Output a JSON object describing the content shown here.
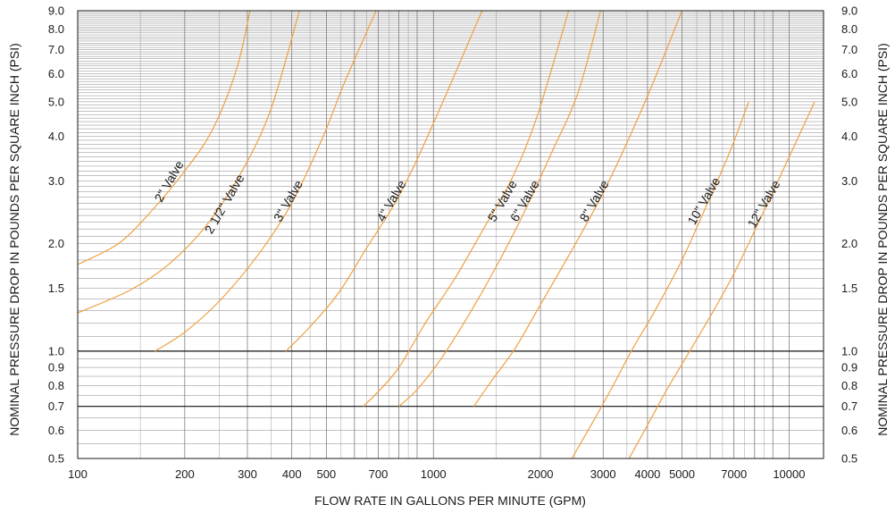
{
  "chart_data": {
    "type": "line",
    "xscale": "log",
    "yscale": "log",
    "xlim": [
      100,
      12500
    ],
    "ylim": [
      0.5,
      9.0
    ],
    "grid": true,
    "xlabel": "FLOW RATE IN GALLONS PER MINUTE (GPM)",
    "ylabel_left": "NOMINAL PRESSURE DROP IN POUNDS PER SQUARE INCH (PSI)",
    "ylabel_right": "NOMINAL PRESSURE DROP IN POUNDS PER SQUARE INCH (PSI)",
    "x_tick_labels": [
      {
        "value": 100,
        "label": "100"
      },
      {
        "value": 200,
        "label": "200"
      },
      {
        "value": 300,
        "label": "300"
      },
      {
        "value": 400,
        "label": "400"
      },
      {
        "value": 500,
        "label": "500"
      },
      {
        "value": 700,
        "label": "700"
      },
      {
        "value": 1000,
        "label": "1000"
      },
      {
        "value": 2000,
        "label": "2000"
      },
      {
        "value": 3000,
        "label": "3000"
      },
      {
        "value": 4000,
        "label": "4000"
      },
      {
        "value": 5000,
        "label": "5000"
      },
      {
        "value": 7000,
        "label": "7000"
      },
      {
        "value": 10000,
        "label": "10000"
      }
    ],
    "y_tick_labels": [
      {
        "value": 0.5,
        "label": "0.5"
      },
      {
        "value": 0.6,
        "label": "0.6"
      },
      {
        "value": 0.7,
        "label": "0.7"
      },
      {
        "value": 0.8,
        "label": "0.8"
      },
      {
        "value": 0.9,
        "label": "0.9"
      },
      {
        "value": 1.0,
        "label": "1.0"
      },
      {
        "value": 1.5,
        "label": "1.5"
      },
      {
        "value": 2.0,
        "label": "2.0"
      },
      {
        "value": 3.0,
        "label": "3.0"
      },
      {
        "value": 4.0,
        "label": "4.0"
      },
      {
        "value": 5.0,
        "label": "5.0"
      },
      {
        "value": 6.0,
        "label": "6.0"
      },
      {
        "value": 7.0,
        "label": "7.0"
      },
      {
        "value": 8.0,
        "label": "8.0"
      },
      {
        "value": 9.0,
        "label": "9.0"
      }
    ],
    "emphasized_y_lines": [
      0.7,
      1.0
    ],
    "series_color": "#f0a040",
    "series": [
      {
        "name": "2\" Valve",
        "label_at": [
          185,
          2.95
        ],
        "points": [
          [
            100,
            1.75
          ],
          [
            130,
            2.0
          ],
          [
            160,
            2.45
          ],
          [
            200,
            3.2
          ],
          [
            240,
            4.2
          ],
          [
            280,
            6.2
          ],
          [
            305,
            9.0
          ]
        ]
      },
      {
        "name": "2 1/2\" Valve",
        "label_at": [
          265,
          2.55
        ],
        "points": [
          [
            100,
            1.28
          ],
          [
            140,
            1.48
          ],
          [
            180,
            1.75
          ],
          [
            230,
            2.25
          ],
          [
            290,
            3.2
          ],
          [
            350,
            4.8
          ],
          [
            420,
            9.0
          ]
        ]
      },
      {
        "name": "3\" Valve",
        "label_at": [
          400,
          2.6
        ],
        "points": [
          [
            165,
            1.0
          ],
          [
            200,
            1.13
          ],
          [
            250,
            1.38
          ],
          [
            320,
            1.85
          ],
          [
            400,
            2.6
          ],
          [
            490,
            4.0
          ],
          [
            560,
            5.6
          ],
          [
            690,
            9.0
          ]
        ]
      },
      {
        "name": "4\" Valve",
        "label_at": [
          780,
          2.6
        ],
        "points": [
          [
            385,
            1.0
          ],
          [
            450,
            1.17
          ],
          [
            540,
            1.45
          ],
          [
            650,
            1.95
          ],
          [
            780,
            2.6
          ],
          [
            900,
            3.45
          ],
          [
            1100,
            5.4
          ],
          [
            1370,
            9.0
          ]
        ]
      },
      {
        "name": "5\" Valve",
        "label_at": [
          1600,
          2.6
        ],
        "points": [
          [
            635,
            0.7
          ],
          [
            700,
            0.77
          ],
          [
            800,
            0.9
          ],
          [
            950,
            1.2
          ],
          [
            1150,
            1.6
          ],
          [
            1400,
            2.25
          ],
          [
            1650,
            3.0
          ],
          [
            1950,
            4.5
          ],
          [
            2400,
            9.0
          ]
        ]
      },
      {
        "name": "6\" Valve",
        "label_at": [
          1850,
          2.6
        ],
        "points": [
          [
            800,
            0.7
          ],
          [
            900,
            0.78
          ],
          [
            1050,
            0.95
          ],
          [
            1250,
            1.25
          ],
          [
            1500,
            1.72
          ],
          [
            1800,
            2.45
          ],
          [
            2150,
            3.6
          ],
          [
            2550,
            5.3
          ],
          [
            2950,
            9.0
          ]
        ]
      },
      {
        "name": "8\" Valve",
        "label_at": [
          2900,
          2.6
        ],
        "points": [
          [
            1300,
            0.7
          ],
          [
            1450,
            0.82
          ],
          [
            1700,
            1.02
          ],
          [
            2000,
            1.35
          ],
          [
            2400,
            1.85
          ],
          [
            2900,
            2.6
          ],
          [
            3400,
            3.6
          ],
          [
            4100,
            5.5
          ],
          [
            5000,
            9.0
          ]
        ]
      },
      {
        "name": "10\" Valve",
        "label_at": [
          5900,
          2.6
        ],
        "points": [
          [
            2450,
            0.5
          ],
          [
            2800,
            0.63
          ],
          [
            3200,
            0.8
          ],
          [
            3600,
            1.0
          ],
          [
            4200,
            1.3
          ],
          [
            5000,
            1.8
          ],
          [
            5900,
            2.6
          ],
          [
            6800,
            3.6
          ],
          [
            7700,
            5.0
          ]
        ]
      },
      {
        "name": "12\" Valve",
        "label_at": [
          8700,
          2.55
        ],
        "points": [
          [
            3550,
            0.5
          ],
          [
            4000,
            0.62
          ],
          [
            4500,
            0.77
          ],
          [
            5100,
            0.95
          ],
          [
            6000,
            1.25
          ],
          [
            7000,
            1.65
          ],
          [
            8300,
            2.35
          ],
          [
            9800,
            3.35
          ],
          [
            11800,
            5.0
          ]
        ]
      }
    ]
  }
}
